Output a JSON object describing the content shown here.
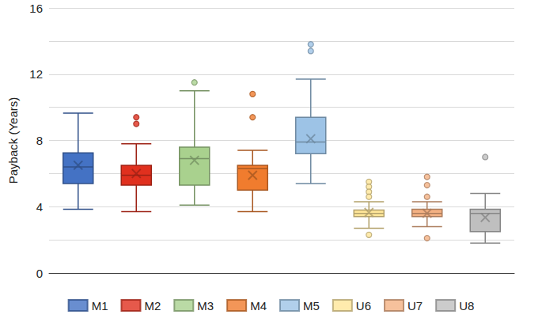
{
  "chart_data": {
    "type": "boxplot",
    "ylabel": "Payback (Years)",
    "ylim": [
      0,
      16
    ],
    "yticks": [
      0,
      4,
      8,
      12,
      16
    ],
    "grid": true,
    "legend": "bottom",
    "tick_labels": "y",
    "series": [
      {
        "name": "M1",
        "color": "#4472c4",
        "values": [
          3.85,
          5.4,
          6.4,
          7.25,
          9.65
        ],
        "mean": 6.5,
        "outliers": []
      },
      {
        "name": "M2",
        "color": "#e0301e",
        "values": [
          3.7,
          5.3,
          5.9,
          6.5,
          7.8
        ],
        "mean": 6.0,
        "outliers": [
          9.4,
          9.0
        ]
      },
      {
        "name": "M3",
        "color": "#a9d18e",
        "values": [
          4.1,
          5.3,
          6.9,
          7.6,
          11.0
        ],
        "mean": 6.8,
        "outliers": [
          11.5
        ]
      },
      {
        "name": "M4",
        "color": "#f07c2e",
        "values": [
          3.7,
          5.0,
          6.3,
          6.5,
          7.4
        ],
        "mean": 5.9,
        "outliers": [
          10.8,
          9.4
        ]
      },
      {
        "name": "M5",
        "color": "#9dc3e6",
        "values": [
          5.4,
          7.2,
          7.9,
          9.4,
          11.7
        ],
        "mean": 8.1,
        "outliers": [
          13.8,
          13.4
        ]
      },
      {
        "name": "U6",
        "color": "#ffe699",
        "values": [
          2.7,
          3.4,
          3.6,
          3.8,
          4.3
        ],
        "mean": 3.65,
        "outliers": [
          5.5,
          5.2,
          4.9,
          4.6,
          2.3
        ]
      },
      {
        "name": "U7",
        "color": "#f4b183",
        "values": [
          2.8,
          3.4,
          3.6,
          3.85,
          4.3
        ],
        "mean": 3.6,
        "outliers": [
          5.8,
          5.3,
          4.6,
          2.1
        ]
      },
      {
        "name": "U8",
        "color": "#bfbfbf",
        "values": [
          1.8,
          2.5,
          3.6,
          3.85,
          4.8
        ],
        "mean": 3.35,
        "outliers": [
          7.0
        ]
      }
    ]
  }
}
